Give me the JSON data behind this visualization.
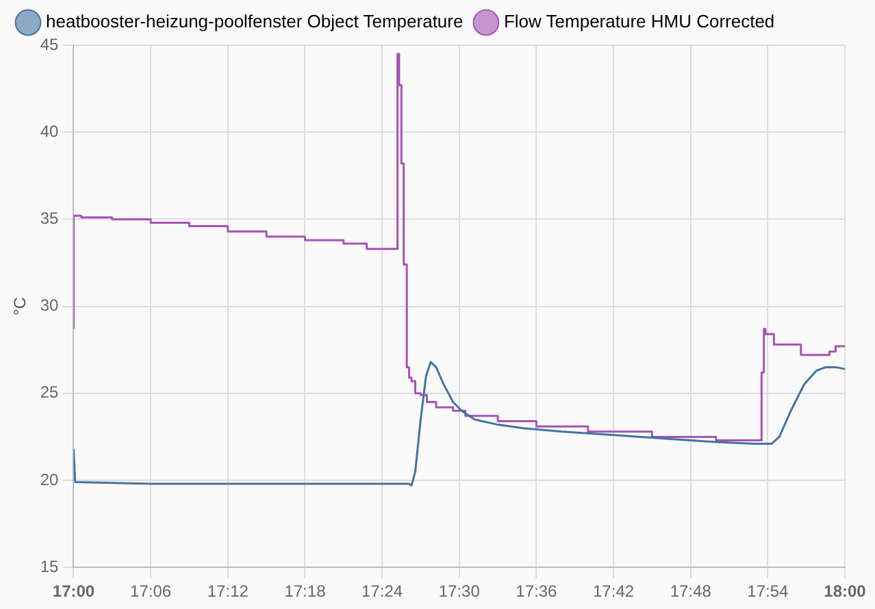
{
  "chart_data": {
    "type": "line",
    "ylabel": "°C",
    "legend": "top",
    "grid": true,
    "marker": "none",
    "xlim": [
      17,
      18
    ],
    "xticks": [
      {
        "value": 17,
        "label": "17:00"
      },
      {
        "value": 17.1,
        "label": "17:06"
      },
      {
        "value": 17.2,
        "label": "17:12"
      },
      {
        "value": 17.3,
        "label": "17:18"
      },
      {
        "value": 17.4,
        "label": "17:24"
      },
      {
        "value": 17.5,
        "label": "17:30"
      },
      {
        "value": 17.6,
        "label": "17:36"
      },
      {
        "value": 17.7,
        "label": "17:42"
      },
      {
        "value": 17.8,
        "label": "17:48"
      },
      {
        "value": 17.9,
        "label": "17:54"
      },
      {
        "value": 18,
        "label": "18:00"
      }
    ],
    "ylim": [
      15,
      45
    ],
    "yticks": [
      15,
      20,
      25,
      30,
      35,
      40,
      45
    ],
    "series": [
      {
        "name": "heatbooster-heizung-poolfenster Object Temperature",
        "color": "#44739e",
        "x": [
          17,
          17.002,
          17.1,
          17.2,
          17.3,
          17.4,
          17.435,
          17.438,
          17.443,
          17.45,
          17.457,
          17.463,
          17.47,
          17.48,
          17.492,
          17.503,
          17.52,
          17.55,
          17.583,
          17.633,
          17.7,
          17.767,
          17.833,
          17.883,
          17.905,
          17.915,
          17.93,
          17.947,
          17.963,
          17.975,
          17.988,
          18
        ],
        "values": [
          21.8,
          19.9,
          19.8,
          19.8,
          19.8,
          19.8,
          19.8,
          19.7,
          20.5,
          23.5,
          26.0,
          26.8,
          26.5,
          25.5,
          24.5,
          24.0,
          23.5,
          23.2,
          23.0,
          22.8,
          22.6,
          22.4,
          22.2,
          22.1,
          22.1,
          22.5,
          24.0,
          25.5,
          26.3,
          26.5,
          26.5,
          26.4
        ]
      },
      {
        "name": "Flow Temperature HMU Corrected",
        "type": "step",
        "color": "#a553b5",
        "x": [
          17,
          17.01,
          17.05,
          17.1,
          17.15,
          17.2,
          17.25,
          17.3,
          17.35,
          17.38,
          17.42,
          17.422,
          17.425,
          17.428,
          17.432,
          17.435,
          17.438,
          17.443,
          17.45,
          17.458,
          17.47,
          17.492,
          17.508,
          17.55,
          17.6,
          17.667,
          17.75,
          17.833,
          17.892,
          17.895,
          17.897,
          17.9,
          17.908,
          17.943,
          17.958,
          17.98,
          17.988,
          18
        ],
        "values": [
          28.7,
          35.2,
          35.1,
          35.0,
          34.8,
          34.6,
          34.3,
          34.0,
          33.8,
          33.6,
          33.3,
          44.5,
          42.7,
          38.2,
          32.4,
          26.5,
          25.9,
          25.7,
          25.0,
          24.9,
          24.5,
          24.2,
          24.0,
          23.7,
          23.4,
          23.1,
          22.8,
          22.5,
          22.3,
          26.2,
          28.7,
          28.4,
          28.4,
          27.8,
          27.2,
          27.2,
          27.4,
          27.7
        ]
      }
    ]
  }
}
